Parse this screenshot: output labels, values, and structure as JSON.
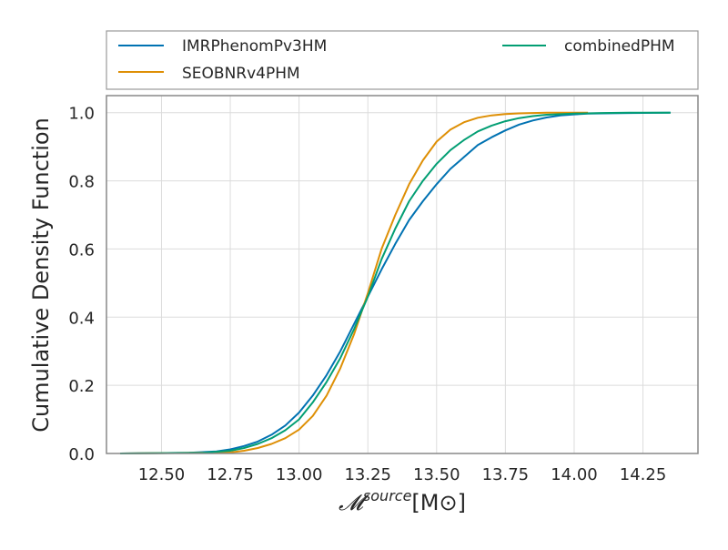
{
  "chart_data": {
    "type": "line",
    "title": "",
    "xlabel_main": "𝓜",
    "xlabel_sup": "source",
    "xlabel_unit": "[M⊙]",
    "ylabel": "Cumulative Density Function",
    "xlim": [
      12.3,
      14.45
    ],
    "ylim": [
      0.0,
      1.05
    ],
    "xticks": [
      12.5,
      12.75,
      13.0,
      13.25,
      13.5,
      13.75,
      14.0,
      14.25
    ],
    "xtick_labels": [
      "12.50",
      "12.75",
      "13.00",
      "13.25",
      "13.50",
      "13.75",
      "14.00",
      "14.25"
    ],
    "yticks": [
      0.0,
      0.2,
      0.4,
      0.6,
      0.8,
      1.0
    ],
    "ytick_labels": [
      "0.0",
      "0.2",
      "0.4",
      "0.6",
      "0.8",
      "1.0"
    ],
    "grid": true,
    "legend_position": "top (above plot), 2 columns",
    "series": [
      {
        "name": "IMRPhenomPv3HM",
        "color": "#0072b2",
        "x": [
          12.35,
          12.6,
          12.7,
          12.75,
          12.8,
          12.85,
          12.9,
          12.95,
          13.0,
          13.05,
          13.1,
          13.15,
          13.2,
          13.25,
          13.3,
          13.35,
          13.4,
          13.45,
          13.5,
          13.55,
          13.6,
          13.65,
          13.7,
          13.75,
          13.8,
          13.85,
          13.9,
          13.95,
          14.0,
          14.05,
          14.1,
          14.2,
          14.35
        ],
        "y": [
          0.0,
          0.002,
          0.006,
          0.012,
          0.022,
          0.035,
          0.055,
          0.082,
          0.12,
          0.17,
          0.23,
          0.3,
          0.38,
          0.46,
          0.54,
          0.615,
          0.685,
          0.74,
          0.79,
          0.835,
          0.87,
          0.905,
          0.928,
          0.948,
          0.965,
          0.977,
          0.986,
          0.992,
          0.995,
          0.997,
          0.998,
          0.999,
          1.0
        ]
      },
      {
        "name": "SEOBNRv4PHM",
        "color": "#de8f05",
        "x": [
          12.35,
          12.75,
          12.8,
          12.85,
          12.9,
          12.95,
          13.0,
          13.05,
          13.1,
          13.15,
          13.2,
          13.25,
          13.3,
          13.35,
          13.4,
          13.45,
          13.5,
          13.55,
          13.6,
          13.65,
          13.7,
          13.75,
          13.8,
          13.85,
          13.9,
          14.0,
          14.05
        ],
        "y": [
          0.0,
          0.003,
          0.008,
          0.016,
          0.028,
          0.045,
          0.07,
          0.11,
          0.17,
          0.25,
          0.35,
          0.47,
          0.6,
          0.7,
          0.79,
          0.86,
          0.915,
          0.95,
          0.972,
          0.985,
          0.992,
          0.996,
          0.998,
          0.999,
          1.0,
          1.0,
          1.0
        ]
      },
      {
        "name": "combinedPHM",
        "color": "#029e73",
        "x": [
          12.35,
          12.65,
          12.75,
          12.8,
          12.85,
          12.9,
          12.95,
          13.0,
          13.05,
          13.1,
          13.15,
          13.2,
          13.25,
          13.3,
          13.35,
          13.4,
          13.45,
          13.5,
          13.55,
          13.6,
          13.65,
          13.7,
          13.75,
          13.8,
          13.85,
          13.9,
          14.0,
          14.1,
          14.2,
          14.35
        ],
        "y": [
          0.0,
          0.002,
          0.008,
          0.016,
          0.028,
          0.045,
          0.068,
          0.1,
          0.15,
          0.21,
          0.28,
          0.365,
          0.46,
          0.57,
          0.66,
          0.74,
          0.8,
          0.85,
          0.89,
          0.92,
          0.945,
          0.962,
          0.975,
          0.984,
          0.99,
          0.994,
          0.997,
          0.999,
          1.0,
          1.0
        ]
      }
    ]
  }
}
